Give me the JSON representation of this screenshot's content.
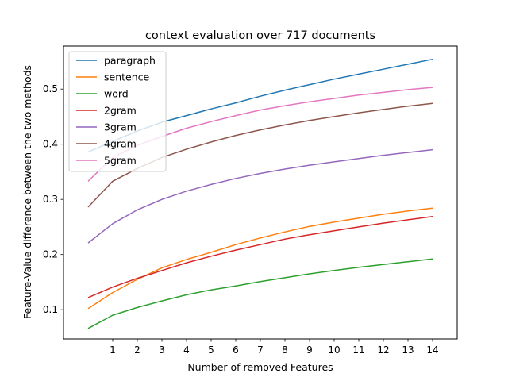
{
  "chart_data": {
    "type": "line",
    "title": "context evaluation over 717 documents",
    "xlabel": "Number of removed Features",
    "ylabel": "Feature-Value difference between the two methods",
    "x": [
      0,
      1,
      2,
      3,
      4,
      5,
      6,
      7,
      8,
      9,
      10,
      11,
      12,
      13,
      14
    ],
    "xticks": [
      1,
      2,
      3,
      4,
      5,
      6,
      7,
      8,
      9,
      10,
      11,
      12,
      13,
      14
    ],
    "xlim": [
      -1,
      15
    ],
    "yticks": [
      0.1,
      0.2,
      0.3,
      0.4,
      0.5
    ],
    "ylim": [
      0.047,
      0.578
    ],
    "legend_position": "upper-left",
    "grid": false,
    "series": [
      {
        "name": "paragraph",
        "color": "#1f77b4",
        "values": [
          0.386,
          0.405,
          0.424,
          0.44,
          0.452,
          0.464,
          0.475,
          0.487,
          0.498,
          0.508,
          0.518,
          0.527,
          0.536,
          0.545,
          0.554
        ]
      },
      {
        "name": "sentence",
        "color": "#ff7f0e",
        "values": [
          0.102,
          0.131,
          0.155,
          0.176,
          0.191,
          0.204,
          0.218,
          0.23,
          0.241,
          0.251,
          0.259,
          0.266,
          0.273,
          0.279,
          0.284
        ]
      },
      {
        "name": "word",
        "color": "#2ca02c",
        "values": [
          0.066,
          0.09,
          0.104,
          0.116,
          0.127,
          0.136,
          0.143,
          0.151,
          0.158,
          0.165,
          0.171,
          0.177,
          0.182,
          0.187,
          0.192
        ]
      },
      {
        "name": "2gram",
        "color": "#d62728",
        "values": [
          0.122,
          0.141,
          0.157,
          0.171,
          0.185,
          0.197,
          0.208,
          0.218,
          0.228,
          0.236,
          0.243,
          0.25,
          0.257,
          0.263,
          0.269
        ]
      },
      {
        "name": "3gram",
        "color": "#9467bd",
        "values": [
          0.221,
          0.256,
          0.281,
          0.3,
          0.315,
          0.327,
          0.338,
          0.347,
          0.355,
          0.362,
          0.368,
          0.374,
          0.38,
          0.385,
          0.39
        ]
      },
      {
        "name": "4gram",
        "color": "#8c564b",
        "values": [
          0.286,
          0.333,
          0.356,
          0.376,
          0.391,
          0.404,
          0.416,
          0.426,
          0.435,
          0.443,
          0.45,
          0.457,
          0.463,
          0.469,
          0.474
        ]
      },
      {
        "name": "5gram",
        "color": "#e377c2",
        "values": [
          0.333,
          0.376,
          0.398,
          0.414,
          0.429,
          0.441,
          0.452,
          0.462,
          0.47,
          0.477,
          0.483,
          0.489,
          0.494,
          0.499,
          0.503
        ]
      }
    ]
  }
}
